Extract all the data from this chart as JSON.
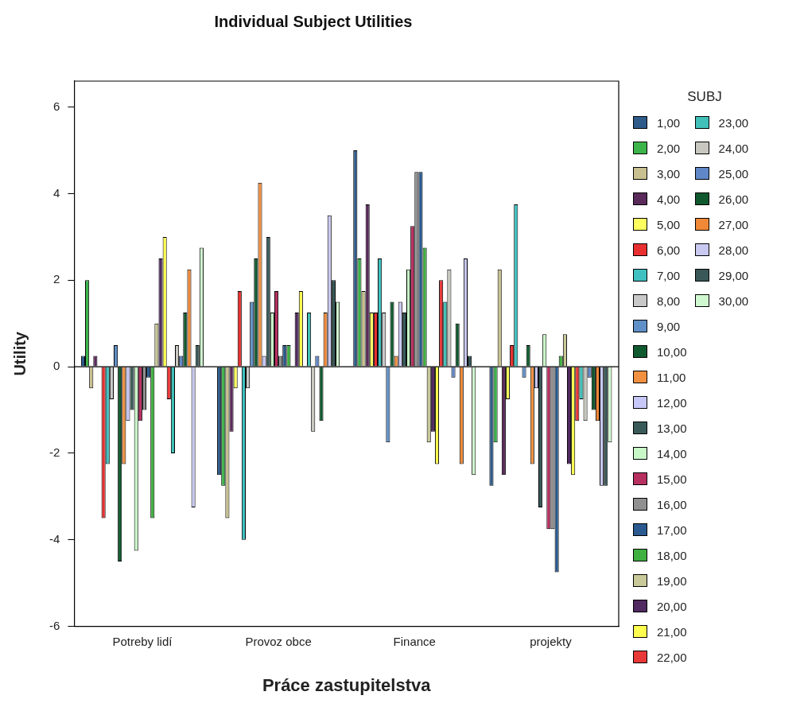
{
  "chart_data": {
    "type": "bar",
    "title": "Individual Subject Utilities",
    "xlabel": "Práce zastupitelstva",
    "ylabel": "Utility",
    "legend_title": "SUBJ",
    "legend": "right",
    "categories": [
      "Potreby lidí",
      "Provoz obce",
      "Finance",
      "projekty"
    ],
    "ylim": [
      -6,
      6.6
    ],
    "yticks": [
      -6,
      -4,
      -2,
      0,
      2,
      4,
      6
    ],
    "grid": false,
    "ref_lines": [
      {
        "axis": "y",
        "value": 0
      }
    ],
    "series": [
      {
        "name": "1,00",
        "color": "#2f5b8a",
        "values": [
          0.25,
          -2.5,
          5,
          -2.75
        ]
      },
      {
        "name": "2,00",
        "color": "#3cb44a",
        "values": [
          2,
          -2.75,
          2.5,
          -1.75
        ]
      },
      {
        "name": "3,00",
        "color": "#c8c090",
        "values": [
          -0.5,
          -3.5,
          1.75,
          2.25
        ]
      },
      {
        "name": "4,00",
        "color": "#5a2a5a",
        "values": [
          0.25,
          -1.5,
          3.75,
          -2.5
        ]
      },
      {
        "name": "5,00",
        "color": "#ffff60",
        "values": [
          0,
          -0.5,
          1.25,
          -0.75
        ]
      },
      {
        "name": "6,00",
        "color": "#e83030",
        "values": [
          -3.5,
          1.75,
          1.25,
          0.5
        ]
      },
      {
        "name": "7,00",
        "color": "#40c0c0",
        "values": [
          -2.25,
          -4,
          2.5,
          3.75
        ]
      },
      {
        "name": "8,00",
        "color": "#c8c8c8",
        "values": [
          -0.75,
          -0.5,
          1.25,
          0
        ]
      },
      {
        "name": "9,00",
        "color": "#6090c8",
        "values": [
          0.5,
          1.5,
          -1.75,
          -0.25
        ]
      },
      {
        "name": "10,00",
        "color": "#105a30",
        "values": [
          -4.5,
          2.5,
          1.5,
          0.5
        ]
      },
      {
        "name": "11,00",
        "color": "#f09040",
        "values": [
          -2.25,
          4.25,
          0.25,
          -2.25
        ]
      },
      {
        "name": "12,00",
        "color": "#c8c8f8",
        "values": [
          -1.25,
          0.25,
          1.5,
          -0.5
        ]
      },
      {
        "name": "13,00",
        "color": "#3a5a5a",
        "values": [
          -1,
          3,
          1.25,
          -3.25
        ]
      },
      {
        "name": "14,00",
        "color": "#c8f8c8",
        "values": [
          -4.25,
          1.25,
          2.25,
          0.75
        ]
      },
      {
        "name": "15,00",
        "color": "#b83060",
        "values": [
          -1.25,
          1.75,
          3.25,
          -3.75
        ]
      },
      {
        "name": "16,00",
        "color": "#909090",
        "values": [
          -1,
          0.25,
          4.5,
          -3.75
        ]
      },
      {
        "name": "17,00",
        "color": "#2a5a90",
        "values": [
          -0.25,
          0.5,
          4.5,
          -4.75
        ]
      },
      {
        "name": "18,00",
        "color": "#40b040",
        "values": [
          -3.5,
          0.5,
          2.75,
          0.25
        ]
      },
      {
        "name": "19,00",
        "color": "#c8c898",
        "values": [
          1,
          0,
          -1.75,
          0.75
        ]
      },
      {
        "name": "20,00",
        "color": "#502a60",
        "values": [
          2.5,
          1.25,
          -1.5,
          -2.25
        ]
      },
      {
        "name": "21,00",
        "color": "#ffff50",
        "values": [
          3,
          1.75,
          -2.25,
          -2.5
        ]
      },
      {
        "name": "22,00",
        "color": "#e83838",
        "values": [
          -0.75,
          0,
          2,
          -1.25
        ]
      },
      {
        "name": "23,00",
        "color": "#40c0b8",
        "values": [
          -2,
          1.25,
          1.5,
          -0.75
        ]
      },
      {
        "name": "24,00",
        "color": "#c8c8c0",
        "values": [
          0.5,
          -1.5,
          2.25,
          -1.25
        ]
      },
      {
        "name": "25,00",
        "color": "#6088c8",
        "values": [
          0.25,
          0.25,
          -0.25,
          -0.25
        ]
      },
      {
        "name": "26,00",
        "color": "#10582e",
        "values": [
          1.25,
          -1.25,
          1,
          -1
        ]
      },
      {
        "name": "27,00",
        "color": "#f08838",
        "values": [
          2.25,
          1.25,
          -2.25,
          -1.25
        ]
      },
      {
        "name": "28,00",
        "color": "#c8c8f0",
        "values": [
          -3.25,
          3.5,
          2.5,
          -2.75
        ]
      },
      {
        "name": "29,00",
        "color": "#3a5858",
        "values": [
          0.5,
          2,
          0.25,
          -2.75
        ]
      },
      {
        "name": "30,00",
        "color": "#d0f8d0",
        "values": [
          2.75,
          1.5,
          -2.5,
          -1.75
        ]
      }
    ]
  }
}
